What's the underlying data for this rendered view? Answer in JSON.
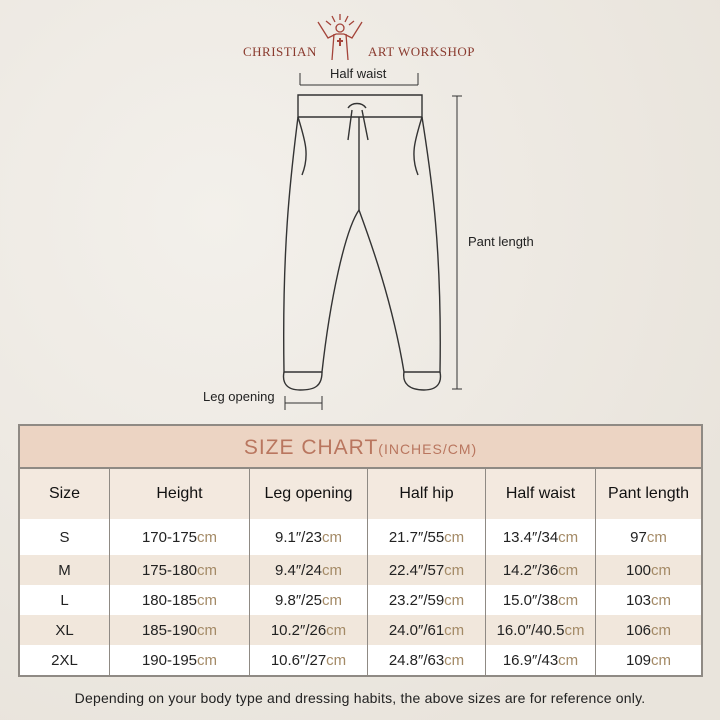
{
  "brand": {
    "left": "CHRISTIAN",
    "right": "ART WORKSHOP"
  },
  "diagram": {
    "half_waist": "Half waist",
    "pant_length": "Pant length",
    "leg_opening": "Leg opening"
  },
  "table": {
    "title": "SIZE CHART",
    "title_units": "(INCHES/CM)",
    "headers": [
      "Size",
      "Height",
      "Leg opening",
      "Half hip",
      "Half waist",
      "Pant length"
    ],
    "unit": "cm",
    "rows": [
      [
        "S",
        "170-175",
        "9.1″/23",
        "21.7″/55",
        "13.4″/34",
        "97"
      ],
      [
        "M",
        "175-180",
        "9.4″/24",
        "22.4″/57",
        "14.2″/36",
        "100"
      ],
      [
        "L",
        "180-185",
        "9.8″/25",
        "23.2″/59",
        "15.0″/38",
        "103"
      ],
      [
        "XL",
        "185-190",
        "10.2″/26",
        "24.0″/61",
        "16.0″/40.5",
        "106"
      ],
      [
        "2XL",
        "190-195",
        "10.6″/27",
        "24.8″/63",
        "16.9″/43",
        "109"
      ]
    ]
  },
  "footer": "Depending on your body type and dressing habits, the above sizes are for reference only.",
  "colors": {
    "accent": "#b9765f",
    "header_bg": "#ecd4c3",
    "brand": "#8a3a2e",
    "unit": "#a48a66"
  }
}
